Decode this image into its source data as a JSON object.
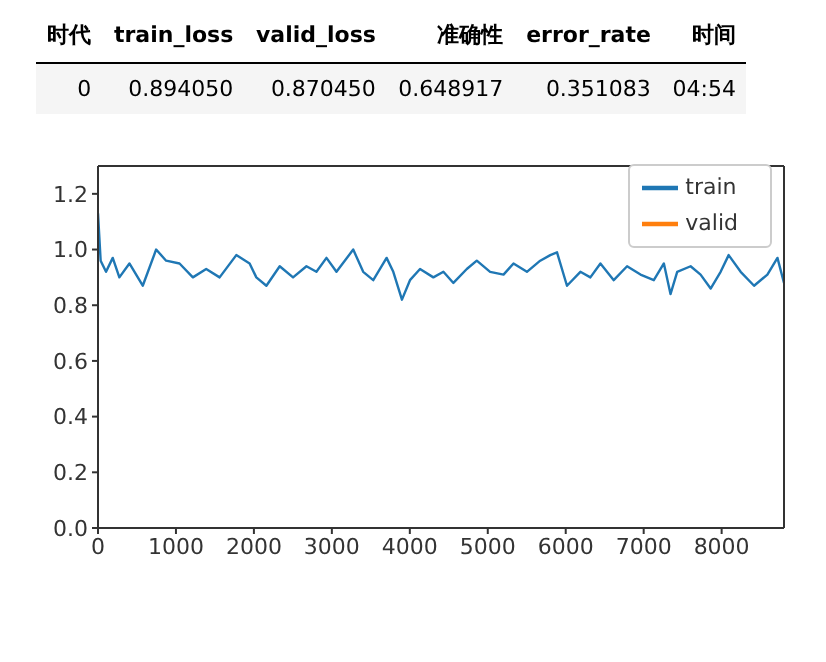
{
  "chart_data": [
    {
      "type": "other",
      "categories": [
        "时代",
        "train_loss",
        "valid_loss",
        "准确性",
        "error_rate",
        "时间"
      ],
      "annotations": [
        "0",
        "0.894050",
        "0.870450",
        "0.648917",
        "0.351083",
        "04:54"
      ]
    },
    {
      "type": "line",
      "xlim": [
        0,
        8800
      ],
      "xticks": [
        0,
        1000,
        2000,
        3000,
        4000,
        5000,
        6000,
        7000,
        8000
      ],
      "ylim": [
        0,
        1.3
      ],
      "yticks": [
        {
          "value": 0,
          "label": "0.0"
        },
        0.2,
        0.4,
        0.6,
        0.8,
        {
          "value": 1,
          "label": "1.0"
        },
        1.2
      ],
      "legend": "top right",
      "line_style": "solid",
      "marker": "none",
      "series": [
        {
          "name": "train",
          "color": "#1f77b4",
          "x": [
            0,
            34,
            103,
            189,
            274,
            403,
            574,
            746,
            874,
            1046,
            1217,
            1388,
            1560,
            1774,
            1945,
            2031,
            2160,
            2331,
            2502,
            2674,
            2802,
            2931,
            3059,
            3274,
            3402,
            3531,
            3702,
            3788,
            3899,
            4002,
            4131,
            4302,
            4431,
            4559,
            4731,
            4859,
            5030,
            5202,
            5330,
            5502,
            5673,
            5802,
            5888,
            6016,
            6188,
            6316,
            6445,
            6616,
            6787,
            6959,
            7130,
            7259,
            7344,
            7430,
            7602,
            7730,
            7859,
            7987,
            8090,
            8244,
            8416,
            8587,
            8716,
            8800
          ],
          "values": [
            1.13,
            0.96,
            0.92,
            0.97,
            0.9,
            0.95,
            0.87,
            1.0,
            0.96,
            0.95,
            0.9,
            0.93,
            0.9,
            0.98,
            0.95,
            0.9,
            0.87,
            0.94,
            0.9,
            0.94,
            0.92,
            0.97,
            0.92,
            1.0,
            0.92,
            0.89,
            0.97,
            0.92,
            0.82,
            0.89,
            0.93,
            0.9,
            0.92,
            0.88,
            0.93,
            0.96,
            0.92,
            0.91,
            0.95,
            0.92,
            0.96,
            0.98,
            0.99,
            0.87,
            0.92,
            0.9,
            0.95,
            0.89,
            0.94,
            0.91,
            0.89,
            0.95,
            0.84,
            0.92,
            0.94,
            0.91,
            0.86,
            0.92,
            0.98,
            0.92,
            0.87,
            0.91,
            0.97,
            0.88
          ]
        },
        {
          "name": "valid",
          "color": "#ff7f0e"
        }
      ]
    }
  ]
}
